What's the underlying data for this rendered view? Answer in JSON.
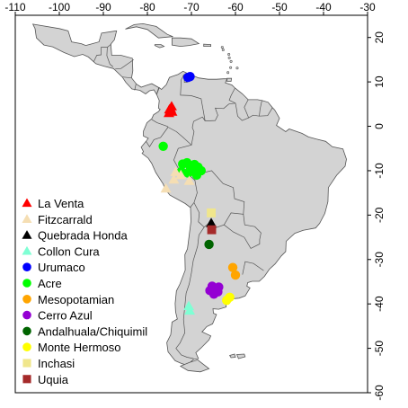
{
  "map": {
    "x_range": [
      -110,
      -30
    ],
    "y_range": [
      -60,
      25
    ],
    "x_ticks": [
      -110,
      -100,
      -90,
      -80,
      -70,
      -60,
      -50,
      -40,
      -30
    ],
    "y_ticks": [
      20,
      10,
      0,
      -10,
      -20,
      -30,
      -40,
      -50,
      -60
    ],
    "land_color": "#d3d3d3",
    "border_color": "#555555"
  },
  "legend": {
    "position": "bottom-left",
    "items": [
      {
        "label": "La Venta",
        "shape": "triangle",
        "color": "#ff0000"
      },
      {
        "label": "Fitzcarrald",
        "shape": "triangle",
        "color": "#f5deb3"
      },
      {
        "label": "Quebrada Honda",
        "shape": "triangle",
        "color": "#000000"
      },
      {
        "label": "Collon Cura",
        "shape": "triangle",
        "color": "#7fffd4"
      },
      {
        "label": "Urumaco",
        "shape": "circle",
        "color": "#0000ff"
      },
      {
        "label": "Acre",
        "shape": "circle",
        "color": "#00ff00"
      },
      {
        "label": "Mesopotamian",
        "shape": "circle",
        "color": "#ffa500"
      },
      {
        "label": "Cerro Azul",
        "shape": "circle",
        "color": "#9400d3"
      },
      {
        "label": "Andalhuala/Chiquimil",
        "shape": "circle",
        "color": "#006400"
      },
      {
        "label": "Monte Hermoso",
        "shape": "circle",
        "color": "#ffff00"
      },
      {
        "label": "Inchasi",
        "shape": "square",
        "color": "#f0e68c"
      },
      {
        "label": "Uquia",
        "shape": "square",
        "color": "#a52a2a"
      }
    ]
  },
  "sites": [
    {
      "name": "La Venta",
      "shape": "triangle",
      "color": "#ff0000",
      "lon": -74.8,
      "lat": 3.5
    },
    {
      "name": "La Venta",
      "shape": "triangle",
      "color": "#ff0000",
      "lon": -74.4,
      "lat": 3.3
    },
    {
      "name": "La Venta",
      "shape": "triangle",
      "color": "#ff0000",
      "lon": -75.1,
      "lat": 3.0
    },
    {
      "name": "La Venta",
      "shape": "triangle",
      "color": "#ff0000",
      "lon": -74.7,
      "lat": 4.0
    },
    {
      "name": "La Venta",
      "shape": "triangle",
      "color": "#ff0000",
      "lon": -74.5,
      "lat": 4.5
    },
    {
      "name": "La Venta",
      "shape": "triangle",
      "color": "#ff0000",
      "lon": -75.0,
      "lat": 3.8
    },
    {
      "name": "Urumaco",
      "shape": "circle",
      "color": "#0000ff",
      "lon": -70.3,
      "lat": 11.2
    },
    {
      "name": "Urumaco",
      "shape": "circle",
      "color": "#0000ff",
      "lon": -70.8,
      "lat": 11.0
    },
    {
      "name": "Acre",
      "shape": "circle",
      "color": "#00ff00",
      "lon": -76.4,
      "lat": -4.5
    },
    {
      "name": "Acre",
      "shape": "circle",
      "color": "#00ff00",
      "lon": -72.0,
      "lat": -8.5
    },
    {
      "name": "Acre",
      "shape": "circle",
      "color": "#00ff00",
      "lon": -71.0,
      "lat": -8.2
    },
    {
      "name": "Acre",
      "shape": "circle",
      "color": "#00ff00",
      "lon": -70.3,
      "lat": -9.0
    },
    {
      "name": "Acre",
      "shape": "circle",
      "color": "#00ff00",
      "lon": -69.3,
      "lat": -8.6
    },
    {
      "name": "Acre",
      "shape": "circle",
      "color": "#00ff00",
      "lon": -68.5,
      "lat": -9.2
    },
    {
      "name": "Acre",
      "shape": "circle",
      "color": "#00ff00",
      "lon": -67.8,
      "lat": -10.0
    },
    {
      "name": "Acre",
      "shape": "circle",
      "color": "#00ff00",
      "lon": -69.5,
      "lat": -10.2
    },
    {
      "name": "Acre",
      "shape": "circle",
      "color": "#00ff00",
      "lon": -70.8,
      "lat": -10.5
    },
    {
      "name": "Acre",
      "shape": "circle",
      "color": "#00ff00",
      "lon": -72.3,
      "lat": -10.2
    },
    {
      "name": "Acre",
      "shape": "circle",
      "color": "#00ff00",
      "lon": -68.8,
      "lat": -11.0
    },
    {
      "name": "Fitzcarrald",
      "shape": "triangle",
      "color": "#f5deb3",
      "lon": -73.6,
      "lat": -10.3
    },
    {
      "name": "Fitzcarrald",
      "shape": "triangle",
      "color": "#f5deb3",
      "lon": -72.4,
      "lat": -11.0
    },
    {
      "name": "Fitzcarrald",
      "shape": "triangle",
      "color": "#f5deb3",
      "lon": -74.0,
      "lat": -12.0
    },
    {
      "name": "Fitzcarrald",
      "shape": "triangle",
      "color": "#f5deb3",
      "lon": -70.5,
      "lat": -12.3
    },
    {
      "name": "Fitzcarrald",
      "shape": "triangle",
      "color": "#f5deb3",
      "lon": -75.8,
      "lat": -14.0
    },
    {
      "name": "Inchasi",
      "shape": "square",
      "color": "#f0e68c",
      "lon": -65.5,
      "lat": -19.5
    },
    {
      "name": "Quebrada Honda",
      "shape": "triangle",
      "color": "#000000",
      "lon": -65.5,
      "lat": -21.8
    },
    {
      "name": "Uquia",
      "shape": "square",
      "color": "#a52a2a",
      "lon": -65.4,
      "lat": -23.3
    },
    {
      "name": "Andalhuala/Chiquimil",
      "shape": "circle",
      "color": "#006400",
      "lon": -66.0,
      "lat": -26.6
    },
    {
      "name": "Mesopotamian",
      "shape": "circle",
      "color": "#ffa500",
      "lon": -60.6,
      "lat": -31.8
    },
    {
      "name": "Mesopotamian",
      "shape": "circle",
      "color": "#ffa500",
      "lon": -60.0,
      "lat": -33.5
    },
    {
      "name": "Cerro Azul",
      "shape": "circle",
      "color": "#9400d3",
      "lon": -64.5,
      "lat": -36.5
    },
    {
      "name": "Cerro Azul",
      "shape": "circle",
      "color": "#9400d3",
      "lon": -65.3,
      "lat": -36.0
    },
    {
      "name": "Cerro Azul",
      "shape": "circle",
      "color": "#9400d3",
      "lon": -64.0,
      "lat": -37.3
    },
    {
      "name": "Cerro Azul",
      "shape": "circle",
      "color": "#9400d3",
      "lon": -65.8,
      "lat": -37.0
    },
    {
      "name": "Cerro Azul",
      "shape": "circle",
      "color": "#9400d3",
      "lon": -64.9,
      "lat": -37.8
    },
    {
      "name": "Cerro Azul",
      "shape": "circle",
      "color": "#9400d3",
      "lon": -63.8,
      "lat": -36.2
    },
    {
      "name": "Monte Hermoso",
      "shape": "circle",
      "color": "#ffff00",
      "lon": -61.3,
      "lat": -38.5
    },
    {
      "name": "Monte Hermoso",
      "shape": "circle",
      "color": "#ffff00",
      "lon": -62.0,
      "lat": -39.2
    },
    {
      "name": "Collon Cura",
      "shape": "triangle",
      "color": "#7fffd4",
      "lon": -70.6,
      "lat": -40.5
    },
    {
      "name": "Collon Cura",
      "shape": "triangle",
      "color": "#7fffd4",
      "lon": -70.4,
      "lat": -41.5
    }
  ]
}
